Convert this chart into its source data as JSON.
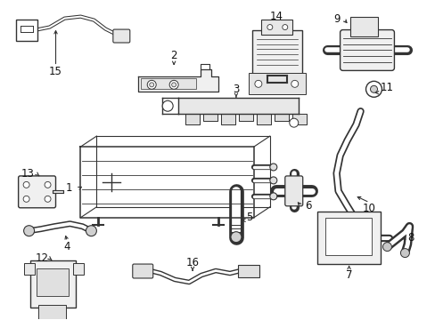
{
  "background_color": "#ffffff",
  "line_color": "#333333",
  "text_color": "#111111",
  "figsize": [
    4.89,
    3.6
  ],
  "dpi": 100,
  "lw": 1.0,
  "fontsize": 8.5
}
